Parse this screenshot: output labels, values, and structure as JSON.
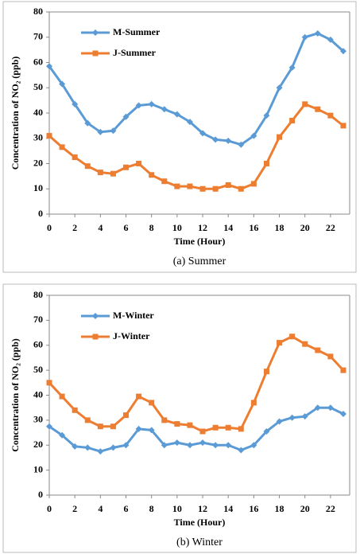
{
  "chart_data": [
    {
      "type": "line",
      "caption": "(a) Summer",
      "xlabel": "Time (Hour)",
      "ylabel": "Concentration of NO₂ (ppb)",
      "x": [
        0,
        1,
        2,
        3,
        4,
        5,
        6,
        7,
        8,
        9,
        10,
        11,
        12,
        13,
        14,
        15,
        16,
        17,
        18,
        19,
        20,
        21,
        22,
        23
      ],
      "xlim": [
        0,
        23.5
      ],
      "xticks": [
        0,
        2,
        4,
        6,
        8,
        10,
        12,
        14,
        16,
        18,
        20,
        22
      ],
      "ylim": [
        0,
        80
      ],
      "yticks": [
        0,
        10,
        20,
        30,
        40,
        50,
        60,
        70,
        80
      ],
      "legend": "upper-left",
      "series": [
        {
          "name": "M-Summer",
          "color": "#5b9bd5",
          "marker": "diamond",
          "values": [
            58.5,
            51.5,
            43.5,
            36,
            32.5,
            33,
            38.5,
            43,
            43.5,
            41.5,
            39.5,
            36.5,
            32,
            29.5,
            29,
            27.5,
            31,
            39,
            50,
            58,
            70,
            71.5,
            69,
            64.5
          ]
        },
        {
          "name": "J-Summer",
          "color": "#ed7d31",
          "marker": "square",
          "values": [
            31,
            26.5,
            22.5,
            19,
            16.5,
            16,
            18.5,
            20,
            15.5,
            13,
            11,
            11,
            10,
            10,
            11.5,
            10,
            12,
            20,
            30.5,
            37,
            43.5,
            41.5,
            39,
            35
          ]
        }
      ]
    },
    {
      "type": "line",
      "caption": "(b) Winter",
      "xlabel": "Time (Hour)",
      "ylabel": "Concentration of NO₂ (ppb)",
      "x": [
        0,
        1,
        2,
        3,
        4,
        5,
        6,
        7,
        8,
        9,
        10,
        11,
        12,
        13,
        14,
        15,
        16,
        17,
        18,
        19,
        20,
        21,
        22,
        23
      ],
      "xlim": [
        0,
        23.5
      ],
      "xticks": [
        0,
        2,
        4,
        6,
        8,
        10,
        12,
        14,
        16,
        18,
        20,
        22
      ],
      "ylim": [
        0,
        80
      ],
      "yticks": [
        0,
        10,
        20,
        30,
        40,
        50,
        60,
        70,
        80
      ],
      "legend": "upper-left",
      "series": [
        {
          "name": "M-Winter",
          "color": "#5b9bd5",
          "marker": "diamond",
          "values": [
            27.5,
            24,
            19.5,
            19,
            17.5,
            19,
            20,
            26.5,
            26,
            20,
            21,
            20,
            21,
            20,
            20,
            18,
            20,
            25.5,
            29.5,
            31,
            31.5,
            35,
            35,
            32.5
          ]
        },
        {
          "name": "J-Winter",
          "color": "#ed7d31",
          "marker": "square",
          "values": [
            45,
            39.5,
            34,
            30,
            27.5,
            27.5,
            32,
            39.5,
            37,
            30,
            28.5,
            28,
            25.5,
            27,
            27,
            26.5,
            37,
            49.5,
            61,
            63.5,
            60.5,
            58,
            55.5,
            50
          ]
        }
      ]
    }
  ]
}
